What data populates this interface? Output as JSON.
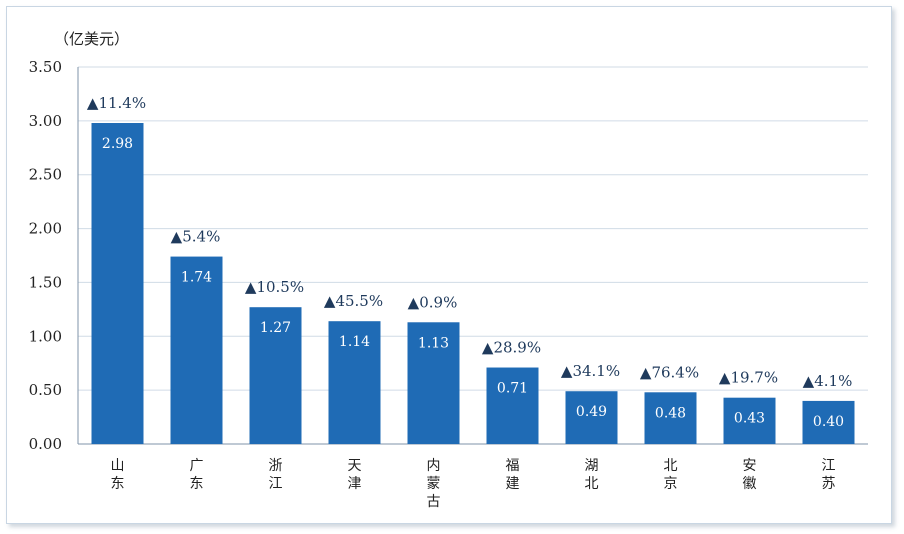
{
  "chart_data": {
    "type": "bar",
    "unit_label": "（亿美元）",
    "categories": [
      "山东",
      "广东",
      "浙江",
      "天津",
      "内蒙古",
      "福建",
      "湖北",
      "北京",
      "安徽",
      "江苏"
    ],
    "values": [
      2.98,
      1.74,
      1.27,
      1.14,
      1.13,
      0.71,
      0.49,
      0.48,
      0.43,
      0.4
    ],
    "value_labels": [
      "2.98",
      "1.74",
      "1.27",
      "1.14",
      "1.13",
      "0.71",
      "0.49",
      "0.48",
      "0.43",
      "0.40"
    ],
    "changes": [
      "▲11.4%",
      "▲5.4%",
      "▲10.5%",
      "▲45.5%",
      "▲0.9%",
      "▲28.9%",
      "▲34.1%",
      "▲76.4%",
      "▲19.7%",
      "▲4.1%"
    ],
    "ylim": [
      0,
      3.5
    ],
    "yticks": [
      "0.00",
      "0.50",
      "1.00",
      "1.50",
      "2.00",
      "2.50",
      "3.00",
      "3.50"
    ],
    "grid": true,
    "colors": {
      "bar": "#1f6bb5",
      "grid": "#d0dbe6",
      "marker": "#1f3a5c"
    }
  }
}
